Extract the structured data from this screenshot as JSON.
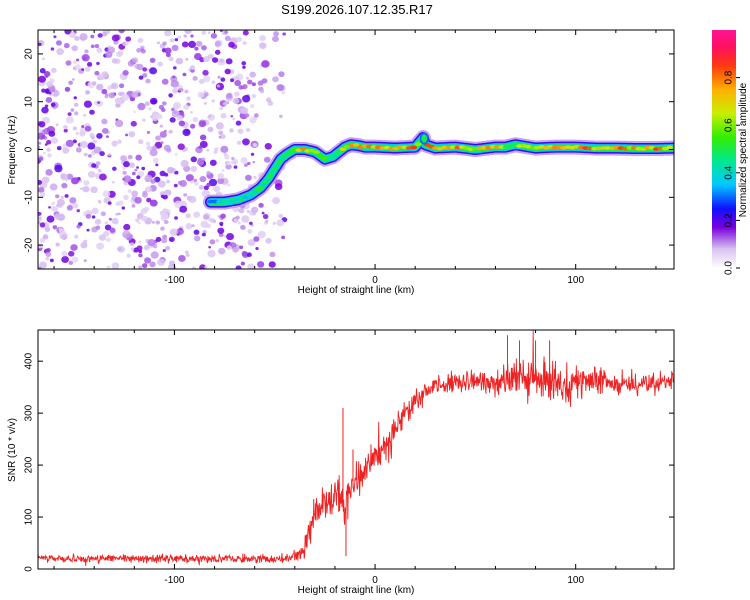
{
  "figure_title": "S199.2026.107.12.35.R17",
  "colors": {
    "background": "#ffffff",
    "axis": "#000000",
    "snr_line": "#ee2222",
    "scatter": "#8a2be2"
  },
  "chart_data": [
    {
      "type": "heatmap",
      "name": "spectrogram",
      "title": "",
      "xlabel": "Height of straight line (km)",
      "ylabel": "Frequency (Hz)",
      "xlim": [
        -168,
        149
      ],
      "ylim": [
        -25,
        25
      ],
      "xticks": [
        -100,
        0,
        100
      ],
      "yticks": [
        -20,
        -10,
        0,
        10,
        20
      ],
      "grid": false,
      "noise_region_x": [
        -168,
        -45
      ],
      "ridge": {
        "x": [
          -82,
          -75,
          -68,
          -62,
          -57,
          -53,
          -50,
          -47,
          -44,
          -40,
          -35,
          -30,
          -25,
          -21,
          -18,
          -15,
          -12,
          -8,
          -5,
          0,
          10,
          20,
          23,
          24,
          25,
          30,
          40,
          50,
          60,
          65,
          70,
          80,
          90,
          100,
          110,
          120,
          130,
          140,
          149
        ],
        "freq_hz": [
          -11,
          -11,
          -10.5,
          -9.5,
          -8,
          -6,
          -4,
          -2,
          -1,
          0,
          0,
          -0.5,
          -2,
          -1.5,
          -0.5,
          0.5,
          1,
          0.8,
          0.5,
          0.5,
          0.3,
          0.5,
          2,
          2.5,
          1,
          0.3,
          0.5,
          0,
          0.5,
          0.5,
          1,
          0.3,
          0.5,
          0.5,
          0.3,
          0.3,
          0.2,
          0.2,
          0.3
        ],
        "amplitude": [
          0.35,
          0.45,
          0.4,
          0.45,
          0.5,
          0.45,
          0.4,
          0.5,
          0.6,
          0.7,
          0.8,
          0.6,
          0.55,
          0.5,
          0.6,
          0.7,
          0.75,
          0.8,
          0.85,
          0.88,
          0.8,
          0.85,
          0.5,
          0.5,
          0.85,
          0.85,
          0.8,
          0.75,
          0.8,
          0.5,
          0.6,
          0.8,
          0.75,
          0.85,
          0.8,
          0.85,
          0.8,
          0.85,
          0.85
        ]
      },
      "colorbar": {
        "label": "Normalized spectral amplitude",
        "range": [
          0,
          1
        ],
        "ticks": [
          "0.0",
          "0.2",
          "0.4",
          "0.6",
          "0.8"
        ],
        "stops": [
          {
            "v": 0.0,
            "c": "#ffffff"
          },
          {
            "v": 0.08,
            "c": "#d8c2f0"
          },
          {
            "v": 0.17,
            "c": "#7a00dd"
          },
          {
            "v": 0.25,
            "c": "#1010ff"
          },
          {
            "v": 0.35,
            "c": "#00c8ff"
          },
          {
            "v": 0.45,
            "c": "#00e890"
          },
          {
            "v": 0.55,
            "c": "#33ee00"
          },
          {
            "v": 0.65,
            "c": "#c8ee00"
          },
          {
            "v": 0.75,
            "c": "#ffb000"
          },
          {
            "v": 0.85,
            "c": "#ff3a10"
          },
          {
            "v": 0.93,
            "c": "#ff1060"
          },
          {
            "v": 1.0,
            "c": "#ff1493"
          }
        ]
      }
    },
    {
      "type": "line",
      "name": "snr",
      "title": "",
      "xlabel": "Height of straight line (km)",
      "ylabel": "SNR (10 * v/v)",
      "xlim": [
        -168,
        149
      ],
      "ylim": [
        0,
        460
      ],
      "xticks": [
        -100,
        0,
        100
      ],
      "yticks": [
        0,
        100,
        200,
        300,
        400
      ],
      "grid": false,
      "envelope": {
        "x": [
          -168,
          -45,
          -40,
          -36,
          -32,
          -28,
          -25,
          -20,
          -17,
          -15,
          -12,
          -8,
          -5,
          0,
          5,
          10,
          15,
          20,
          25,
          30,
          50,
          70,
          90,
          110,
          130,
          149
        ],
        "y": [
          20,
          20,
          25,
          35,
          80,
          130,
          130,
          140,
          150,
          110,
          150,
          170,
          190,
          215,
          240,
          270,
          300,
          320,
          340,
          355,
          360,
          365,
          360,
          360,
          355,
          360
        ],
        "noise_amplitude": [
          6,
          6,
          10,
          15,
          25,
          25,
          25,
          30,
          30,
          30,
          25,
          25,
          25,
          25,
          25,
          25,
          20,
          20,
          15,
          15,
          15,
          30,
          30,
          20,
          15,
          15
        ]
      },
      "spikes": [
        {
          "x": -16,
          "y": 310
        },
        {
          "x": -14.5,
          "y": 25
        },
        {
          "x": -11,
          "y": 230
        },
        {
          "x": 66,
          "y": 450
        },
        {
          "x": 72,
          "y": 440
        },
        {
          "x": 80,
          "y": 440
        },
        {
          "x": 87,
          "y": 440
        }
      ]
    }
  ]
}
